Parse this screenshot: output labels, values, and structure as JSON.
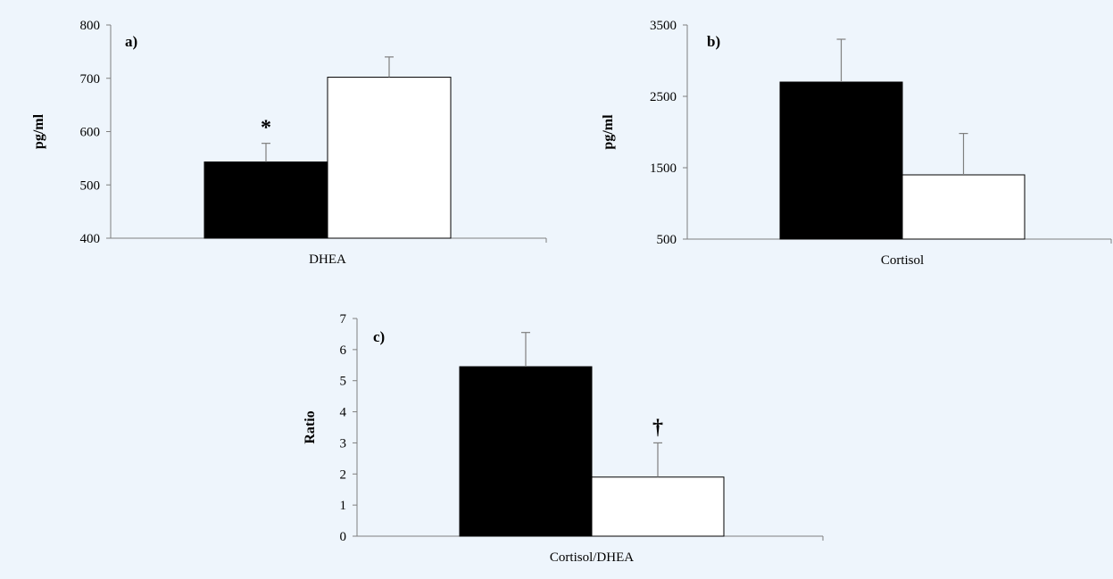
{
  "background_color": "#eef5fc",
  "colors": {
    "bar_dark": "#000000",
    "bar_light": "#ffffff",
    "axis": "#7f7f7f",
    "error_bar": "#7f7f7f"
  },
  "chart_data": [
    {
      "type": "bar",
      "panel_label": "a)",
      "categories": [
        "DHEA"
      ],
      "series": [
        {
          "values": [
            543
          ],
          "error": [
            35
          ],
          "color": "#000000",
          "annotation": "*"
        },
        {
          "values": [
            702
          ],
          "error": [
            38
          ],
          "color": "#ffffff",
          "annotation": ""
        }
      ],
      "ylabel": "pg/ml",
      "xlabel": "",
      "ylim": [
        400,
        800
      ],
      "yticks": [
        "400",
        "500",
        "600",
        "700",
        "800"
      ],
      "grid": false
    },
    {
      "type": "bar",
      "panel_label": "b)",
      "categories": [
        "Cortisol"
      ],
      "series": [
        {
          "values": [
            2700
          ],
          "error": [
            600
          ],
          "color": "#000000",
          "annotation": ""
        },
        {
          "values": [
            1400
          ],
          "error": [
            580
          ],
          "color": "#ffffff",
          "annotation": ""
        }
      ],
      "ylabel": "pg/ml",
      "xlabel": "",
      "ylim": [
        500,
        3500
      ],
      "yticks": [
        "500",
        "1500",
        "2500",
        "3500"
      ],
      "grid": false
    },
    {
      "type": "bar",
      "panel_label": "c)",
      "categories": [
        "Cortisol/DHEA"
      ],
      "series": [
        {
          "values": [
            5.45
          ],
          "error": [
            1.1
          ],
          "color": "#000000",
          "annotation": ""
        },
        {
          "values": [
            1.9
          ],
          "error": [
            1.1
          ],
          "color": "#ffffff",
          "annotation": "†"
        }
      ],
      "ylabel": "Ratio",
      "xlabel": "",
      "ylim": [
        0,
        7
      ],
      "yticks": [
        "0",
        "1",
        "2",
        "3",
        "4",
        "5",
        "6",
        "7"
      ],
      "grid": false
    }
  ]
}
